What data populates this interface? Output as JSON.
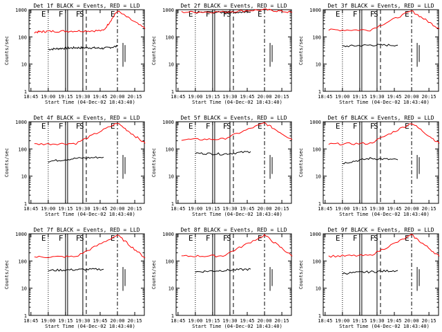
{
  "chart_data": [
    {
      "type": "line",
      "panel": "1f",
      "title": "Det 1f BLACK = Events, RED = LLD",
      "xlabel": "Start Time (04-Dec-02 18:43:40)",
      "ylabel": "Counts/sec",
      "yscale": "log",
      "ylim": [
        1,
        1000
      ],
      "xtick_labels": [
        "18:45",
        "19:00",
        "19:15",
        "19:30",
        "19:45",
        "20:00",
        "20:15"
      ],
      "ytick_labels": [
        "1",
        "10",
        "100",
        "1000"
      ],
      "markers": [
        "E",
        "F",
        "F",
        "S",
        "E"
      ],
      "series": [
        {
          "name": "Events",
          "color": "#000000",
          "x": [
            19.0,
            19.2,
            19.4,
            19.6,
            19.8,
            20.0
          ],
          "values": [
            35,
            38,
            40,
            40,
            38,
            45
          ]
        },
        {
          "name": "LLD",
          "color": "#ff0000",
          "x": [
            18.8,
            19.0,
            19.4,
            19.8,
            20.0,
            20.4
          ],
          "values": [
            150,
            160,
            165,
            170,
            900,
            200
          ]
        }
      ]
    },
    {
      "type": "line",
      "panel": "2f",
      "title": "Det 2f BLACK = Events, RED = LLD",
      "xlabel": "Start Time (04-Dec-02 18:43:40)",
      "ylabel": "Counts/sec",
      "yscale": "log",
      "ylim": [
        1,
        1000
      ],
      "xtick_labels": [
        "18:45",
        "19:00",
        "19:15",
        "19:30",
        "19:45",
        "20:00",
        "20:15"
      ],
      "ytick_labels": [
        "1",
        "10",
        "100",
        "1000"
      ],
      "markers": [
        "E",
        "F",
        "F",
        "S",
        "E"
      ],
      "series": [
        {
          "name": "Events",
          "color": "#000000",
          "x": [
            19.0,
            19.4,
            19.8
          ],
          "values": [
            800,
            800,
            820
          ]
        },
        {
          "name": "LLD",
          "color": "#ff0000",
          "x": [
            18.8,
            19.4,
            20.0,
            20.4
          ],
          "values": [
            820,
            830,
            1000,
            800
          ]
        }
      ]
    },
    {
      "type": "line",
      "panel": "3f",
      "title": "Det 3f BLACK = Events, RED = LLD",
      "xlabel": "Start Time (04-Dec-02 18:43:40)",
      "ylabel": "Counts/sec",
      "yscale": "log",
      "ylim": [
        1,
        1000
      ],
      "xtick_labels": [
        "18:45",
        "19:00",
        "19:15",
        "19:30",
        "19:45",
        "20:00",
        "20:15"
      ],
      "ytick_labels": [
        "1",
        "10",
        "100",
        "1000"
      ],
      "markers": [
        "E",
        "F",
        "F",
        "S",
        "E"
      ],
      "series": [
        {
          "name": "Events",
          "color": "#000000",
          "x": [
            19.0,
            19.4,
            19.8
          ],
          "values": [
            45,
            50,
            50
          ]
        },
        {
          "name": "LLD",
          "color": "#ff0000",
          "x": [
            18.8,
            19.4,
            20.0,
            20.4
          ],
          "values": [
            180,
            180,
            900,
            200
          ]
        }
      ]
    },
    {
      "type": "line",
      "panel": "4f",
      "title": "Det 4f BLACK = Events, RED = LLD",
      "xlabel": "Start Time (04-Dec-02 18:43:40)",
      "ylabel": "Counts/sec",
      "yscale": "log",
      "ylim": [
        1,
        1000
      ],
      "xtick_labels": [
        "18:45",
        "19:00",
        "19:15",
        "19:30",
        "19:45",
        "20:00",
        "20:15"
      ],
      "ytick_labels": [
        "1",
        "10",
        "100",
        "1000"
      ],
      "markers": [
        "E",
        "F",
        "F",
        "S",
        "E"
      ],
      "series": [
        {
          "name": "Events",
          "color": "#000000",
          "x": [
            19.0,
            19.4,
            19.8
          ],
          "values": [
            35,
            45,
            50
          ]
        },
        {
          "name": "LLD",
          "color": "#ff0000",
          "x": [
            18.8,
            19.4,
            20.0,
            20.4
          ],
          "values": [
            150,
            160,
            900,
            160
          ]
        }
      ]
    },
    {
      "type": "line",
      "panel": "5f",
      "title": "Det 5f BLACK = Events, RED = LLD",
      "xlabel": "Start Time (04-Dec-02 18:43:40)",
      "ylabel": "Counts/sec",
      "yscale": "log",
      "ylim": [
        1,
        1000
      ],
      "xtick_labels": [
        "18:45",
        "19:00",
        "19:15",
        "19:30",
        "19:45",
        "20:00",
        "20:15"
      ],
      "ytick_labels": [
        "1",
        "10",
        "100",
        "1000"
      ],
      "markers": [
        "E",
        "F",
        "F",
        "S",
        "E"
      ],
      "series": [
        {
          "name": "Events",
          "color": "#000000",
          "x": [
            19.0,
            19.4,
            19.8
          ],
          "values": [
            70,
            65,
            80
          ]
        },
        {
          "name": "LLD",
          "color": "#ff0000",
          "x": [
            18.8,
            19.4,
            20.0,
            20.4
          ],
          "values": [
            220,
            230,
            900,
            220
          ]
        }
      ]
    },
    {
      "type": "line",
      "panel": "6f",
      "title": "Det 6f BLACK = Events, RED = LLD",
      "xlabel": "Start Time (04-Dec-02 18:43:40)",
      "ylabel": "Counts/sec",
      "yscale": "log",
      "ylim": [
        1,
        1000
      ],
      "xtick_labels": [
        "18:45",
        "19:00",
        "19:15",
        "19:30",
        "19:45",
        "20:00",
        "20:15"
      ],
      "ytick_labels": [
        "1",
        "10",
        "100",
        "1000"
      ],
      "markers": [
        "E",
        "F",
        "F",
        "S",
        "E"
      ],
      "series": [
        {
          "name": "Events",
          "color": "#000000",
          "x": [
            19.0,
            19.4,
            19.8
          ],
          "values": [
            30,
            45,
            40
          ]
        },
        {
          "name": "LLD",
          "color": "#ff0000",
          "x": [
            18.8,
            19.4,
            20.0,
            20.4
          ],
          "values": [
            150,
            160,
            900,
            160
          ]
        }
      ]
    },
    {
      "type": "line",
      "panel": "7f",
      "title": "Det 7f BLACK = Events, RED = LLD",
      "xlabel": "Start Time (04-Dec-02 18:43:40)",
      "ylabel": "Counts/sec",
      "yscale": "log",
      "ylim": [
        1,
        1000
      ],
      "xtick_labels": [
        "18:45",
        "19:00",
        "19:15",
        "19:30",
        "19:45",
        "20:00",
        "20:15"
      ],
      "ytick_labels": [
        "1",
        "10",
        "100",
        "1000"
      ],
      "markers": [
        "E",
        "F",
        "F",
        "S",
        "E"
      ],
      "series": [
        {
          "name": "Events",
          "color": "#000000",
          "x": [
            19.0,
            19.4,
            19.8
          ],
          "values": [
            45,
            48,
            50
          ]
        },
        {
          "name": "LLD",
          "color": "#ff0000",
          "x": [
            18.8,
            19.4,
            20.0,
            20.4
          ],
          "values": [
            140,
            145,
            900,
            130
          ]
        }
      ]
    },
    {
      "type": "line",
      "panel": "8f",
      "title": "Det 8f BLACK = Events, RED = LLD",
      "xlabel": "Start Time (04-Dec-02 18:43:40)",
      "ylabel": "Counts/sec",
      "yscale": "log",
      "ylim": [
        1,
        1000
      ],
      "xtick_labels": [
        "18:45",
        "19:00",
        "19:15",
        "19:30",
        "19:45",
        "20:00",
        "20:15"
      ],
      "ytick_labels": [
        "1",
        "10",
        "100",
        "1000"
      ],
      "markers": [
        "E",
        "F",
        "F",
        "S",
        "E"
      ],
      "series": [
        {
          "name": "Events",
          "color": "#000000",
          "x": [
            19.0,
            19.4,
            19.8
          ],
          "values": [
            40,
            45,
            50
          ]
        },
        {
          "name": "LLD",
          "color": "#ff0000",
          "x": [
            18.8,
            19.4,
            20.0,
            20.4
          ],
          "values": [
            150,
            155,
            900,
            150
          ]
        }
      ]
    },
    {
      "type": "line",
      "panel": "9f",
      "title": "Det 9f BLACK = Events, RED = LLD",
      "xlabel": "Start Time (04-Dec-02 18:43:40)",
      "ylabel": "Counts/sec",
      "yscale": "log",
      "ylim": [
        1,
        1000
      ],
      "xtick_labels": [
        "18:45",
        "19:00",
        "19:15",
        "19:30",
        "19:45",
        "20:00",
        "20:15"
      ],
      "ytick_labels": [
        "1",
        "10",
        "100",
        "1000"
      ],
      "markers": [
        "E",
        "F",
        "F",
        "S",
        "E"
      ],
      "series": [
        {
          "name": "Events",
          "color": "#000000",
          "x": [
            19.0,
            19.4,
            19.8
          ],
          "values": [
            35,
            40,
            45
          ]
        },
        {
          "name": "LLD",
          "color": "#ff0000",
          "x": [
            18.8,
            19.4,
            20.0,
            20.4
          ],
          "values": [
            150,
            160,
            900,
            150
          ]
        }
      ]
    }
  ]
}
